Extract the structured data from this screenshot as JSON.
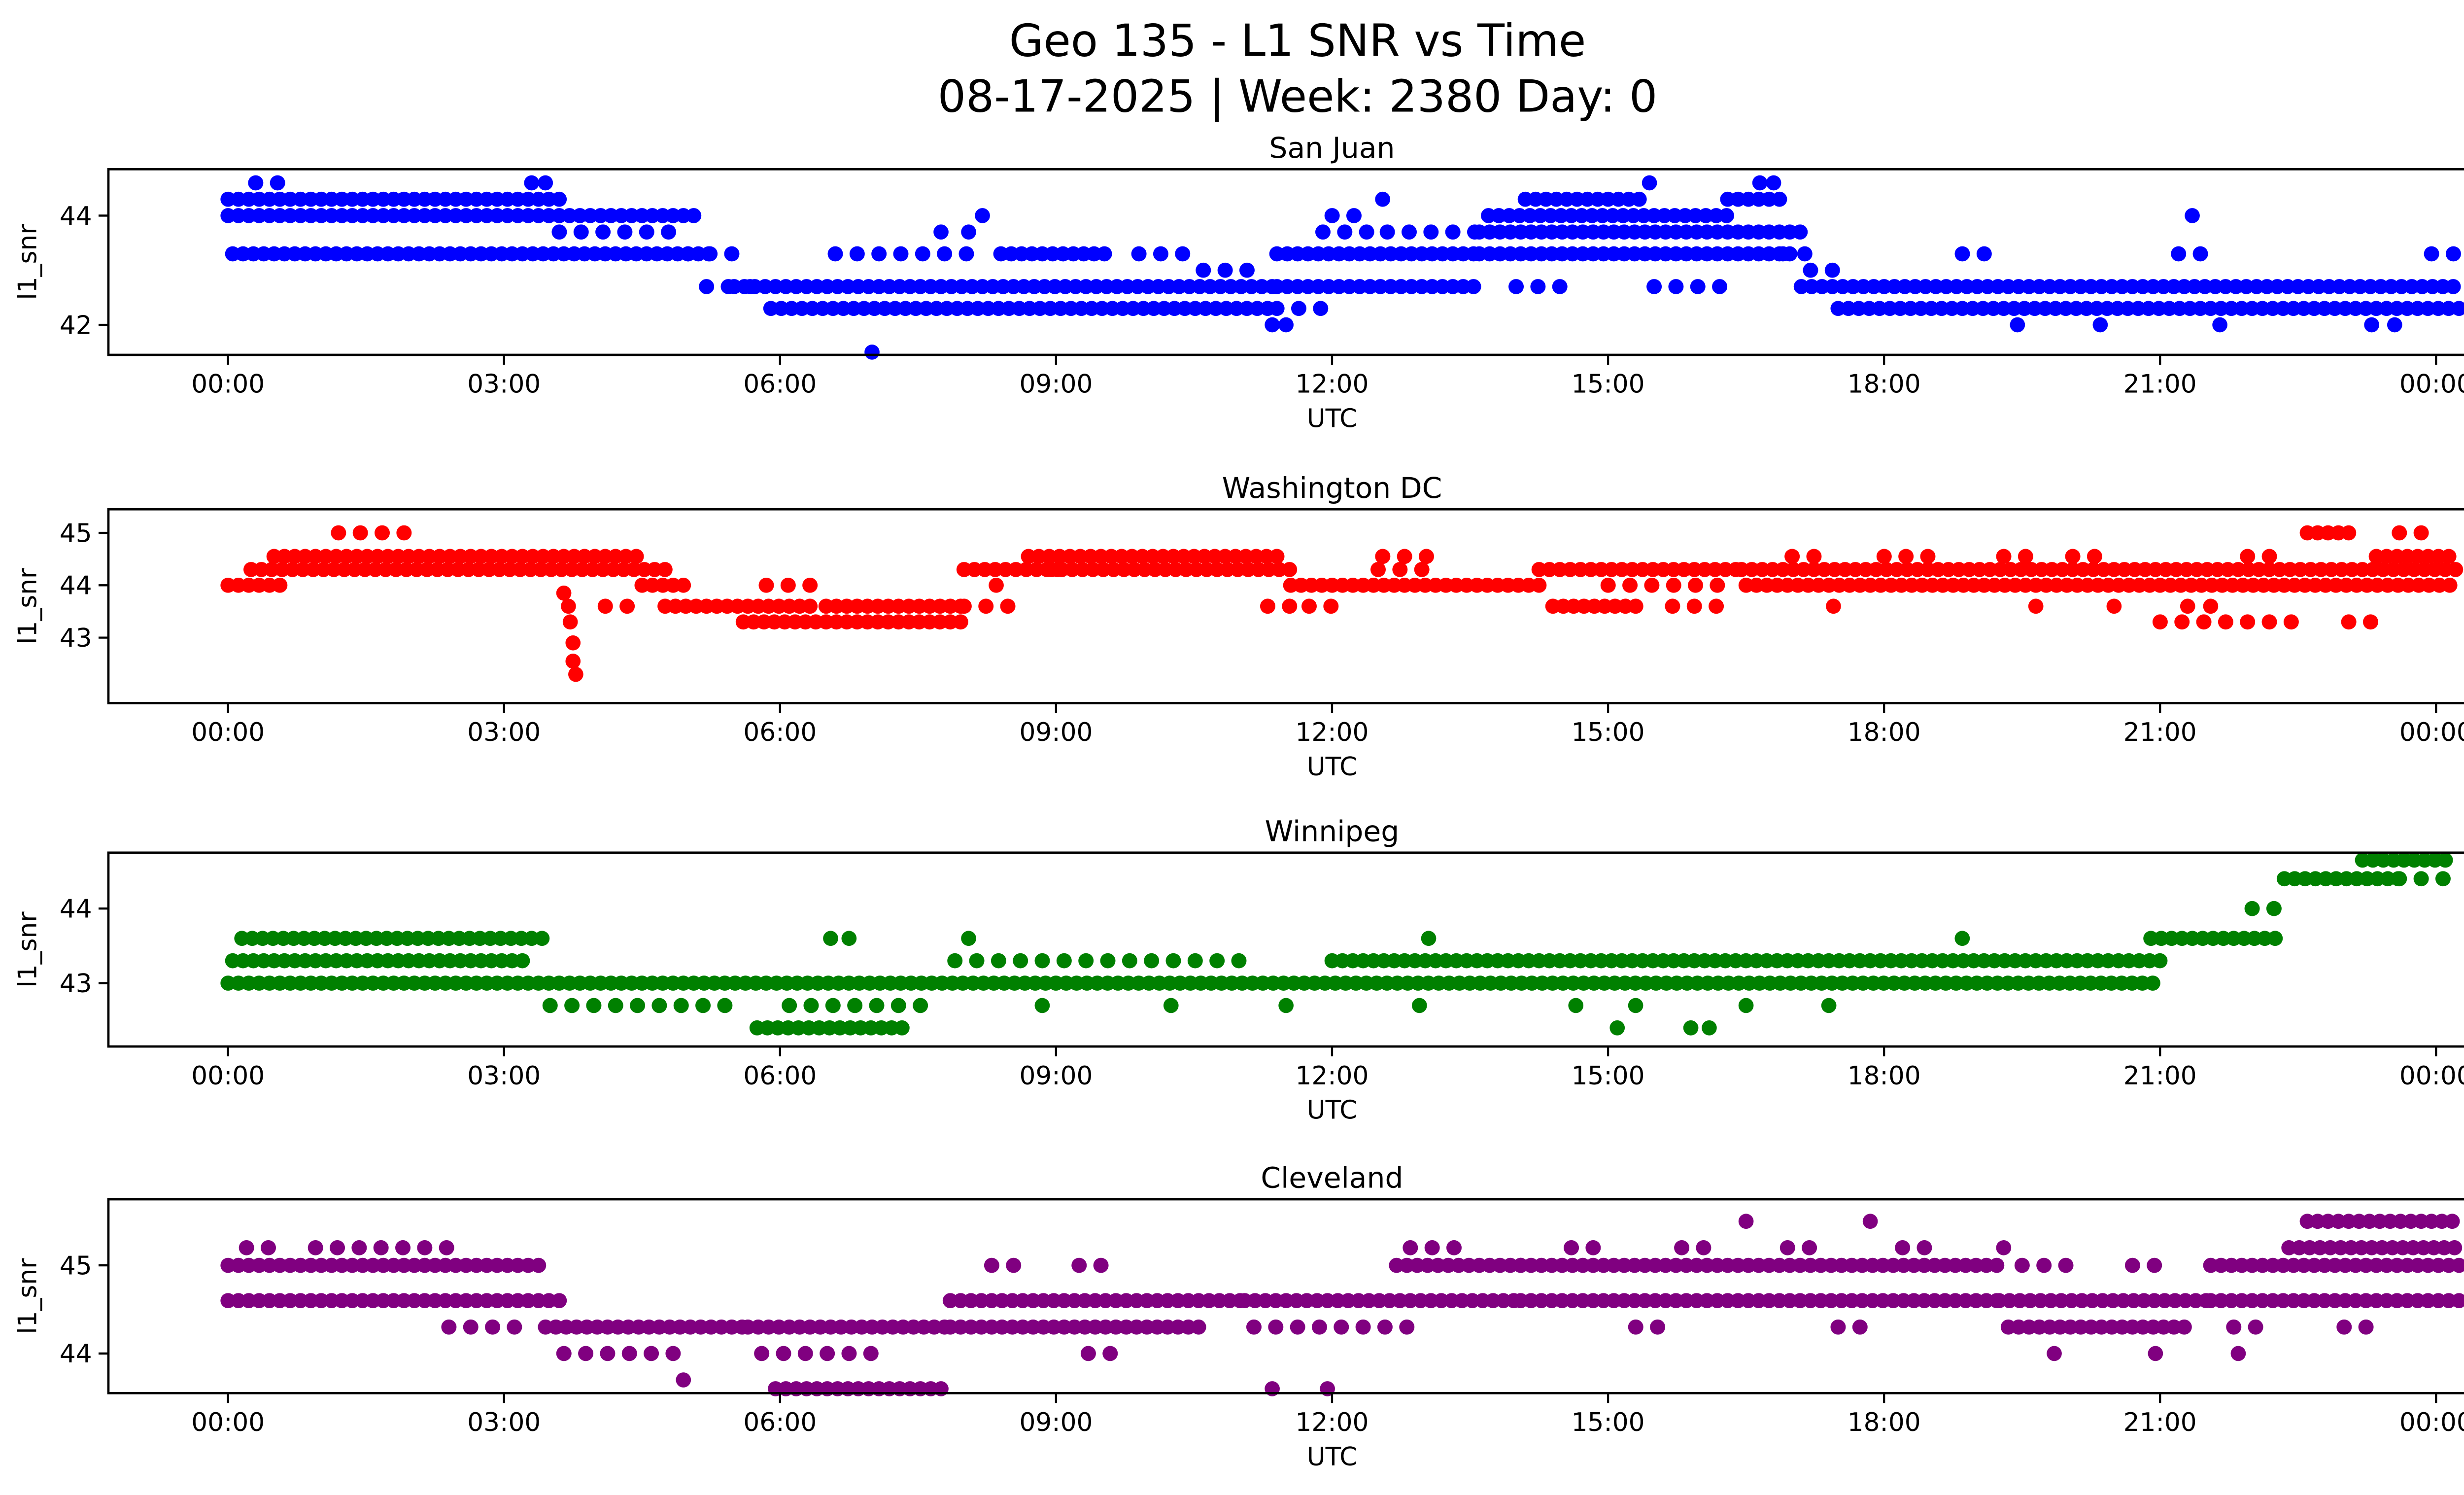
{
  "figure": {
    "title_line1": "Geo 135 - L1 SNR vs Time",
    "title_line2": "08-17-2025 | Week: 2380 Day: 0",
    "xlabel": "UTC",
    "ylabel": "l1_snr"
  },
  "axis": {
    "xtick_hours": [
      0,
      3,
      6,
      9,
      12,
      15,
      18,
      21,
      24
    ],
    "xtick_labels": [
      "00:00",
      "03:00",
      "06:00",
      "09:00",
      "12:00",
      "15:00",
      "18:00",
      "21:00",
      "00:00"
    ],
    "xlim": [
      -1.3,
      25.3
    ]
  },
  "chart_data": [
    {
      "type": "scatter",
      "station": "San Juan",
      "color": "#0000FF",
      "ylabel": "l1_snr",
      "xlabel": "UTC",
      "ylim": [
        41.45,
        44.85
      ],
      "yticks": [
        42,
        44
      ],
      "bands": [
        [
          0.0,
          3.6,
          44.3,
          "s"
        ],
        [
          0.0,
          5.1,
          44.0,
          "s"
        ],
        [
          0.05,
          5.3,
          43.3,
          "s"
        ],
        [
          3.6,
          5.0,
          43.7,
          "d"
        ],
        [
          0.3,
          0.55,
          44.6,
          "d"
        ],
        [
          5.0,
          5.6,
          43.3,
          "d"
        ],
        [
          5.2,
          5.7,
          42.7,
          "d"
        ],
        [
          5.5,
          11.4,
          42.7,
          "s"
        ],
        [
          5.9,
          11.4,
          42.3,
          "s"
        ],
        [
          6.6,
          8.2,
          43.3,
          "d"
        ],
        [
          8.4,
          9.6,
          43.3,
          "s"
        ],
        [
          9.9,
          10.4,
          43.3,
          "d"
        ],
        [
          10.6,
          11.2,
          43.0,
          "d"
        ],
        [
          11.4,
          13.6,
          43.3,
          "s"
        ],
        [
          11.4,
          13.6,
          42.7,
          "s"
        ],
        [
          11.9,
          12.5,
          43.7,
          "d"
        ],
        [
          12.0,
          12.35,
          44.0,
          "d"
        ],
        [
          11.4,
          12.1,
          42.3,
          "d"
        ],
        [
          12.6,
          13.6,
          43.7,
          "d"
        ],
        [
          13.6,
          17.1,
          43.7,
          "s"
        ],
        [
          13.7,
          16.3,
          44.0,
          "s"
        ],
        [
          14.1,
          15.4,
          44.3,
          "s"
        ],
        [
          16.3,
          16.9,
          44.3,
          "s"
        ],
        [
          13.6,
          17.0,
          43.3,
          "s"
        ],
        [
          14.0,
          14.5,
          42.7,
          "d"
        ],
        [
          15.5,
          16.4,
          42.7,
          "d"
        ],
        [
          16.9,
          17.3,
          43.3,
          "d"
        ],
        [
          17.1,
          24.25,
          42.7,
          "s"
        ],
        [
          17.5,
          24.25,
          42.3,
          "s"
        ],
        [
          17.2,
          17.5,
          43.0,
          "d"
        ],
        [
          18.85,
          19.25,
          43.3,
          "d"
        ],
        [
          21.2,
          21.5,
          43.3,
          "d"
        ],
        [
          23.95,
          24.2,
          43.3,
          "d"
        ]
      ],
      "points": [
        [
          3.3,
          44.6
        ],
        [
          3.45,
          44.6
        ],
        [
          7.0,
          41.5
        ],
        [
          7.75,
          43.7
        ],
        [
          8.05,
          43.7
        ],
        [
          8.2,
          44.0
        ],
        [
          11.35,
          42.0
        ],
        [
          11.5,
          42.0
        ],
        [
          12.55,
          44.3
        ],
        [
          15.45,
          44.6
        ],
        [
          16.65,
          44.6
        ],
        [
          16.8,
          44.6
        ],
        [
          21.35,
          44.0
        ],
        [
          19.45,
          42.0
        ],
        [
          20.35,
          42.0
        ],
        [
          21.65,
          42.0
        ],
        [
          23.3,
          42.0
        ],
        [
          23.55,
          42.0
        ]
      ]
    },
    {
      "type": "scatter",
      "station": "Washington DC",
      "color": "#FF0000",
      "ylabel": "l1_snr",
      "xlabel": "UTC",
      "ylim": [
        41.75,
        45.45
      ],
      "yticks": [
        43,
        44,
        45
      ],
      "bands": [
        [
          0.0,
          0.6,
          44.0,
          "s"
        ],
        [
          0.25,
          4.75,
          44.3,
          "s"
        ],
        [
          0.5,
          4.5,
          44.55,
          "s"
        ],
        [
          1.2,
          2.05,
          45.0,
          "d"
        ],
        [
          4.1,
          4.35,
          43.6,
          "d"
        ],
        [
          4.5,
          4.95,
          44.0,
          "s"
        ],
        [
          4.75,
          6.35,
          43.6,
          "s"
        ],
        [
          5.85,
          6.45,
          44.0,
          "d"
        ],
        [
          5.6,
          8.05,
          43.3,
          "s"
        ],
        [
          6.5,
          8.05,
          43.6,
          "s"
        ],
        [
          8.0,
          9.05,
          44.3,
          "s"
        ],
        [
          8.0,
          8.5,
          43.6,
          "d"
        ],
        [
          8.7,
          11.5,
          44.55,
          "s"
        ],
        [
          8.95,
          11.55,
          44.3,
          "s"
        ],
        [
          11.3,
          11.65,
          43.6,
          "d"
        ],
        [
          11.75,
          12.15,
          43.6,
          "d"
        ],
        [
          11.55,
          14.25,
          44.0,
          "s"
        ],
        [
          12.5,
          13.15,
          44.3,
          "d"
        ],
        [
          12.55,
          13.05,
          44.55,
          "d"
        ],
        [
          14.25,
          16.45,
          44.3,
          "s"
        ],
        [
          14.4,
          15.4,
          43.6,
          "s"
        ],
        [
          15.7,
          16.3,
          43.6,
          "d"
        ],
        [
          15.0,
          16.2,
          44.0,
          "d"
        ],
        [
          16.45,
          24.25,
          44.3,
          "s"
        ],
        [
          16.5,
          24.25,
          44.0,
          "s"
        ],
        [
          17.0,
          17.35,
          44.55,
          "d"
        ],
        [
          18.0,
          18.65,
          44.55,
          "d"
        ],
        [
          19.3,
          19.55,
          44.55,
          "d"
        ],
        [
          20.05,
          20.35,
          44.55,
          "d"
        ],
        [
          21.95,
          22.3,
          44.55,
          "d"
        ],
        [
          21.0,
          22.5,
          43.3,
          "d"
        ],
        [
          23.05,
          23.35,
          43.3,
          "d"
        ],
        [
          22.6,
          23.05,
          45.0,
          "s"
        ],
        [
          23.35,
          24.15,
          44.55,
          "s"
        ],
        [
          23.6,
          23.9,
          45.0,
          "d"
        ]
      ],
      "points": [
        [
          3.65,
          43.85
        ],
        [
          3.7,
          43.6
        ],
        [
          3.72,
          43.3
        ],
        [
          3.75,
          42.9
        ],
        [
          3.75,
          42.55
        ],
        [
          3.78,
          42.3
        ],
        [
          8.35,
          44.0
        ],
        [
          17.45,
          43.6
        ],
        [
          19.65,
          43.6
        ],
        [
          20.5,
          43.6
        ],
        [
          21.3,
          43.6
        ],
        [
          21.55,
          43.6
        ]
      ]
    },
    {
      "type": "scatter",
      "station": "Winnipeg",
      "color": "#008000",
      "ylabel": "l1_snr",
      "xlabel": "UTC",
      "ylim": [
        42.15,
        44.75
      ],
      "yticks": [
        43,
        44
      ],
      "bands": [
        [
          0.15,
          3.5,
          43.6,
          "s"
        ],
        [
          0.0,
          21.0,
          43.0,
          "s"
        ],
        [
          0.05,
          3.2,
          43.3,
          "s"
        ],
        [
          12.0,
          21.0,
          43.3,
          "s"
        ],
        [
          7.9,
          11.0,
          43.3,
          "d"
        ],
        [
          3.5,
          5.6,
          42.7,
          "d"
        ],
        [
          6.1,
          7.6,
          42.7,
          "d"
        ],
        [
          5.75,
          7.4,
          42.4,
          "s"
        ],
        [
          20.9,
          22.35,
          43.6,
          "s"
        ],
        [
          22.0,
          22.4,
          44.0,
          "d"
        ],
        [
          22.35,
          23.65,
          44.4,
          "s"
        ],
        [
          23.2,
          24.2,
          44.65,
          "s"
        ],
        [
          23.6,
          24.1,
          44.4,
          "d"
        ]
      ],
      "points": [
        [
          6.55,
          43.6
        ],
        [
          6.75,
          43.6
        ],
        [
          8.05,
          43.6
        ],
        [
          13.05,
          43.6
        ],
        [
          18.85,
          43.6
        ],
        [
          8.85,
          42.7
        ],
        [
          10.25,
          42.7
        ],
        [
          11.5,
          42.7
        ],
        [
          12.95,
          42.7
        ],
        [
          14.65,
          42.7
        ],
        [
          15.3,
          42.7
        ],
        [
          16.5,
          42.7
        ],
        [
          17.4,
          42.7
        ],
        [
          15.1,
          42.4
        ],
        [
          15.9,
          42.4
        ],
        [
          16.1,
          42.4
        ]
      ]
    },
    {
      "type": "scatter",
      "station": "Cleveland",
      "color": "#800080",
      "ylabel": "l1_snr",
      "xlabel": "UTC",
      "ylim": [
        43.55,
        45.75
      ],
      "yticks": [
        44,
        45
      ],
      "bands": [
        [
          0.0,
          3.45,
          45.0,
          "s"
        ],
        [
          0.0,
          3.65,
          44.6,
          "s"
        ],
        [
          0.2,
          0.55,
          45.2,
          "d"
        ],
        [
          0.95,
          2.55,
          45.2,
          "d"
        ],
        [
          2.4,
          3.2,
          44.3,
          "d"
        ],
        [
          3.45,
          5.65,
          44.3,
          "s"
        ],
        [
          3.65,
          5.0,
          44.0,
          "d"
        ],
        [
          5.65,
          7.85,
          44.3,
          "s"
        ],
        [
          5.95,
          7.75,
          43.6,
          "s"
        ],
        [
          5.8,
          7.0,
          44.0,
          "d"
        ],
        [
          7.85,
          11.05,
          44.6,
          "s"
        ],
        [
          7.85,
          10.55,
          44.3,
          "s"
        ],
        [
          8.3,
          8.6,
          45.0,
          "d"
        ],
        [
          9.25,
          9.65,
          45.0,
          "d"
        ],
        [
          9.35,
          9.7,
          44.0,
          "d"
        ],
        [
          11.05,
          14.05,
          44.6,
          "s"
        ],
        [
          11.15,
          13.0,
          44.3,
          "d"
        ],
        [
          12.7,
          14.05,
          45.0,
          "s"
        ],
        [
          12.85,
          13.45,
          45.2,
          "d"
        ],
        [
          14.05,
          19.25,
          45.0,
          "s"
        ],
        [
          14.05,
          19.25,
          44.6,
          "s"
        ],
        [
          14.6,
          14.95,
          45.2,
          "d"
        ],
        [
          15.8,
          16.15,
          45.2,
          "d"
        ],
        [
          16.95,
          17.3,
          45.2,
          "d"
        ],
        [
          18.2,
          18.55,
          45.2,
          "d"
        ],
        [
          15.3,
          15.65,
          44.3,
          "d"
        ],
        [
          17.5,
          17.8,
          44.3,
          "d"
        ],
        [
          19.25,
          21.55,
          44.6,
          "s"
        ],
        [
          19.35,
          21.35,
          44.3,
          "s"
        ],
        [
          19.5,
          20.0,
          45.0,
          "d"
        ],
        [
          20.7,
          21.1,
          45.0,
          "d"
        ],
        [
          21.55,
          24.25,
          45.0,
          "s"
        ],
        [
          21.55,
          24.25,
          44.6,
          "s"
        ],
        [
          22.4,
          24.25,
          45.2,
          "s"
        ],
        [
          22.6,
          24.25,
          45.5,
          "s"
        ],
        [
          21.8,
          22.25,
          44.3,
          "d"
        ],
        [
          23.0,
          23.4,
          44.3,
          "d"
        ]
      ],
      "points": [
        [
          4.95,
          43.7
        ],
        [
          11.35,
          43.6
        ],
        [
          11.95,
          43.6
        ],
        [
          16.5,
          45.5
        ],
        [
          17.85,
          45.5
        ],
        [
          19.3,
          45.2
        ],
        [
          19.85,
          44.0
        ],
        [
          20.95,
          44.0
        ],
        [
          21.85,
          44.0
        ]
      ]
    }
  ]
}
